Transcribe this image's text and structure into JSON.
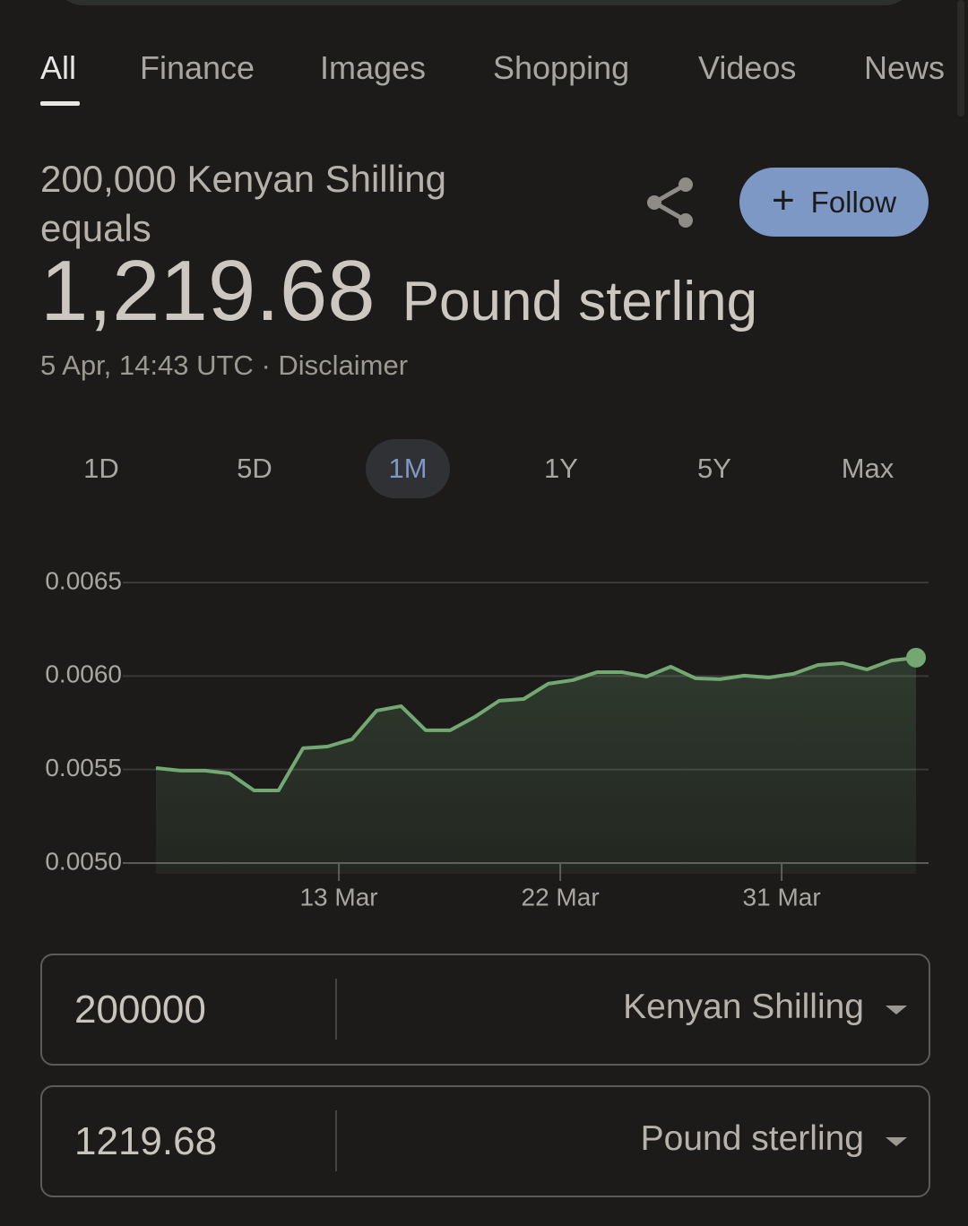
{
  "tabs": [
    "All",
    "Finance",
    "Images",
    "Shopping",
    "Videos",
    "News"
  ],
  "selected_tab": 0,
  "result": {
    "from_text": "200,000 Kenyan Shilling equals",
    "to_amount": "1,219.68",
    "to_currency": "Pound sterling",
    "timestamp": "5 Apr, 14:43 UTC",
    "separator": "·",
    "disclaimer": "Disclaimer",
    "follow": "Follow"
  },
  "ranges": [
    "1D",
    "5D",
    "1M",
    "1Y",
    "5Y",
    "Max"
  ],
  "selected_range": 2,
  "chart_data": {
    "type": "line",
    "color": "#73a872",
    "categories": [
      null,
      null,
      null,
      null,
      null,
      null,
      null,
      null,
      null,
      null,
      null,
      null,
      null,
      null,
      null,
      null,
      null,
      null,
      null,
      null,
      null,
      null,
      null,
      null,
      null,
      null,
      null,
      null,
      null,
      null,
      null,
      null
    ],
    "values": [
      0.005508,
      0.005494,
      0.005494,
      0.005479,
      0.005388,
      0.005388,
      0.005614,
      0.005623,
      0.005662,
      0.005815,
      0.005839,
      0.00571,
      0.00571,
      0.005781,
      0.005868,
      0.005877,
      0.005959,
      0.005978,
      0.006021,
      0.006021,
      0.005997,
      0.00605,
      0.005988,
      0.005983,
      0.006002,
      0.005992,
      0.006012,
      0.006059,
      0.006069,
      0.006035,
      0.006083,
      0.006098
    ],
    "xticks": [
      {
        "value": 7.46,
        "label": "13 Mar"
      },
      {
        "value": 16.49,
        "label": "22 Mar"
      },
      {
        "value": 25.52,
        "label": "31 Mar"
      }
    ],
    "ylim": [
      0.005,
      0.0065
    ],
    "yticks": [
      {
        "value": 0.005,
        "label": "0.0050"
      },
      0.0055,
      {
        "value": 0.006,
        "label": "0.0060"
      },
      0.0065
    ],
    "grid": true
  },
  "converter": [
    {
      "amount": "200000",
      "currency": "Kenyan Shilling"
    },
    {
      "amount": "1219.68",
      "currency": "Pound sterling"
    }
  ]
}
